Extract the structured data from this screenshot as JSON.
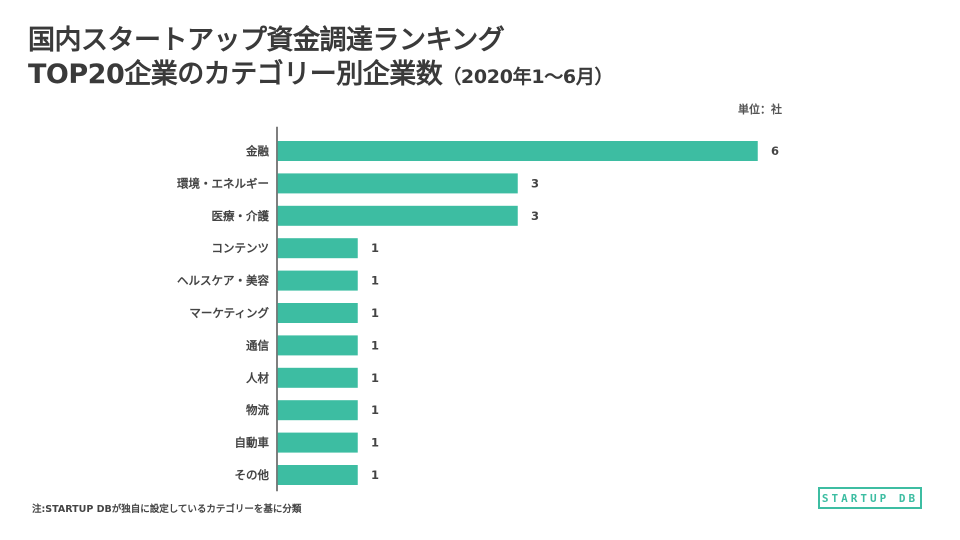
{
  "title_line1": "国内スタートアップ資金調達ランキング",
  "title_line2": "TOP20企業のカテゴリー別企業数",
  "title_period": "（2020年1〜6月）",
  "unit_label": "単位：社",
  "footnote": "注:STARTUP DBが独自に設定しているカテゴリーを基に分類",
  "logo_text": "STARTUP DB",
  "colors": {
    "bar": "#3dbda2",
    "axis": "#555555"
  },
  "chart_data": {
    "type": "bar",
    "orientation": "horizontal",
    "categories": [
      "金融",
      "環境・エネルギー",
      "医療・介護",
      "コンテンツ",
      "ヘルスケア・美容",
      "マーケティング",
      "通信",
      "人材",
      "物流",
      "自動車",
      "その他"
    ],
    "values": [
      6,
      3,
      3,
      1,
      1,
      1,
      1,
      1,
      1,
      1,
      1
    ],
    "xlim": [
      0,
      6
    ],
    "data_labels": true,
    "grid": false
  }
}
